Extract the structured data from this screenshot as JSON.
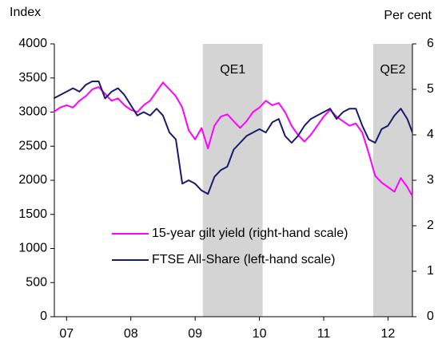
{
  "chart_data": {
    "type": "line",
    "y_label": "Index",
    "y2_label": "Per cent",
    "x": [
      2006.8,
      2006.9,
      2007.0,
      2007.1,
      2007.2,
      2007.3,
      2007.4,
      2007.5,
      2007.6,
      2007.7,
      2007.8,
      2007.9,
      2008.0,
      2008.1,
      2008.2,
      2008.3,
      2008.4,
      2008.5,
      2008.6,
      2008.7,
      2008.8,
      2008.9,
      2009.0,
      2009.1,
      2009.2,
      2009.3,
      2009.4,
      2009.5,
      2009.6,
      2009.7,
      2009.8,
      2009.9,
      2010.0,
      2010.1,
      2010.2,
      2010.3,
      2010.4,
      2010.5,
      2010.6,
      2010.7,
      2010.8,
      2010.9,
      2011.0,
      2011.1,
      2011.2,
      2011.3,
      2011.4,
      2011.5,
      2011.6,
      2011.7,
      2011.8,
      2011.9,
      2012.0,
      2012.1,
      2012.2,
      2012.3,
      2012.38
    ],
    "series": [
      {
        "name": "15-year gilt yield (right-hand scale)",
        "color": "#ff00ff",
        "axis": "y2",
        "values": [
          4.5,
          4.6,
          4.65,
          4.6,
          4.75,
          4.85,
          5.0,
          5.05,
          4.9,
          4.75,
          4.8,
          4.65,
          4.55,
          4.5,
          4.65,
          4.75,
          4.95,
          5.15,
          5.0,
          4.85,
          4.6,
          4.1,
          3.9,
          4.15,
          3.7,
          4.2,
          4.4,
          4.45,
          4.3,
          4.15,
          4.3,
          4.5,
          4.6,
          4.75,
          4.65,
          4.7,
          4.5,
          4.2,
          4.0,
          3.85,
          4.0,
          4.2,
          4.4,
          4.55,
          4.4,
          4.3,
          4.2,
          4.25,
          4.05,
          3.6,
          3.1,
          2.95,
          2.85,
          2.75,
          3.05,
          2.85,
          2.65
        ]
      },
      {
        "name": "FTSE All-Share (left-hand scale)",
        "color": "#1a1a6e",
        "values": [
          3200,
          3250,
          3300,
          3350,
          3300,
          3400,
          3450,
          3450,
          3200,
          3300,
          3350,
          3250,
          3100,
          2950,
          3000,
          2950,
          3050,
          2950,
          2700,
          2600,
          1950,
          2000,
          1950,
          1850,
          1800,
          2050,
          2150,
          2200,
          2450,
          2550,
          2650,
          2700,
          2750,
          2700,
          2850,
          2900,
          2650,
          2550,
          2650,
          2800,
          2900,
          2950,
          3000,
          3050,
          2900,
          3000,
          3050,
          3050,
          2800,
          2600,
          2550,
          2750,
          2800,
          2950,
          3050,
          2900,
          2700
        ]
      }
    ],
    "shaded": [
      {
        "label": "QE1",
        "x0": 2009.12,
        "x1": 2010.05
      },
      {
        "label": "QE2",
        "x0": 2011.77,
        "x1": 2012.38
      }
    ],
    "xlim": [
      2006.81,
      2012.38
    ],
    "xticks": [
      {
        "value": 2007,
        "label": "07"
      },
      {
        "value": 2008,
        "label": "08"
      },
      {
        "value": 2009,
        "label": "09"
      },
      {
        "value": 2010,
        "label": "10"
      },
      {
        "value": 2011,
        "label": "11"
      },
      {
        "value": 2012,
        "label": "12"
      }
    ],
    "ylim": [
      0,
      4000
    ],
    "yticks": [
      0,
      500,
      1000,
      1500,
      2000,
      2500,
      3000,
      3500,
      4000
    ],
    "y2lim": [
      0,
      6
    ],
    "y2ticks": [
      0,
      1,
      2,
      3,
      4,
      5,
      6
    ]
  }
}
